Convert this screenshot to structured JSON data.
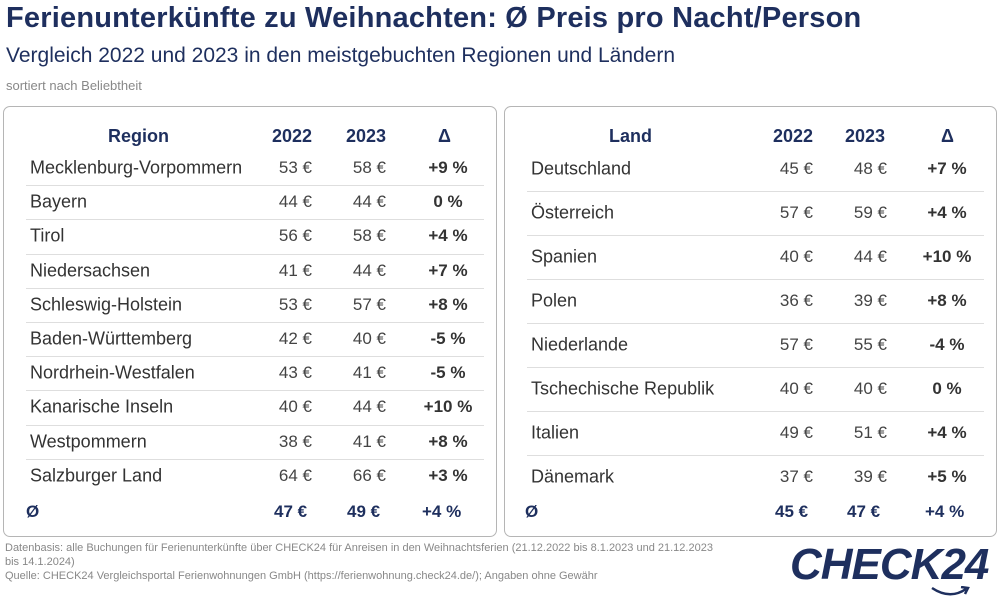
{
  "header": {
    "title": "Ferienunterkünfte zu Weihnachten: Ø Preis pro Nacht/Person",
    "subtitle": "Vergleich 2022 und 2023 in den meistgebuchten Regionen und Ländern",
    "note": "sortiert nach Beliebtheit"
  },
  "chart_data": [
    {
      "type": "table",
      "columns": [
        "Region",
        "2022",
        "2023",
        "Δ"
      ],
      "rows": [
        {
          "label": "Mecklenburg-Vorpommern",
          "v2022": "53 €",
          "v2023": "58 €",
          "delta": "+9 %"
        },
        {
          "label": "Bayern",
          "v2022": "44 €",
          "v2023": "44 €",
          "delta": "0 %"
        },
        {
          "label": "Tirol",
          "v2022": "56 €",
          "v2023": "58 €",
          "delta": "+4 %"
        },
        {
          "label": "Niedersachsen",
          "v2022": "41 €",
          "v2023": "44 €",
          "delta": "+7 %"
        },
        {
          "label": "Schleswig-Holstein",
          "v2022": "53 €",
          "v2023": "57 €",
          "delta": "+8 %"
        },
        {
          "label": "Baden-Württemberg",
          "v2022": "42 €",
          "v2023": "40 €",
          "delta": "-5 %"
        },
        {
          "label": "Nordrhein-Westfalen",
          "v2022": "43 €",
          "v2023": "41 €",
          "delta": "-5 %"
        },
        {
          "label": "Kanarische Inseln",
          "v2022": "40 €",
          "v2023": "44 €",
          "delta": "+10 %"
        },
        {
          "label": "Westpommern",
          "v2022": "38 €",
          "v2023": "41 €",
          "delta": "+8 %"
        },
        {
          "label": "Salzburger Land",
          "v2022": "64 €",
          "v2023": "66 €",
          "delta": "+3 %"
        }
      ],
      "average": {
        "label": "Ø",
        "v2022": "47 €",
        "v2023": "49 €",
        "delta": "+4 %"
      }
    },
    {
      "type": "table",
      "columns": [
        "Land",
        "2022",
        "2023",
        "Δ"
      ],
      "rows": [
        {
          "label": "Deutschland",
          "v2022": "45 €",
          "v2023": "48 €",
          "delta": "+7 %"
        },
        {
          "label": "Österreich",
          "v2022": "57 €",
          "v2023": "59 €",
          "delta": "+4 %"
        },
        {
          "label": "Spanien",
          "v2022": "40 €",
          "v2023": "44 €",
          "delta": "+10 %"
        },
        {
          "label": "Polen",
          "v2022": "36 €",
          "v2023": "39 €",
          "delta": "+8 %"
        },
        {
          "label": "Niederlande",
          "v2022": "57 €",
          "v2023": "55 €",
          "delta": "-4 %"
        },
        {
          "label": "Tschechische Republik",
          "v2022": "40 €",
          "v2023": "40 €",
          "delta": "0 %"
        },
        {
          "label": "Italien",
          "v2022": "49 €",
          "v2023": "51 €",
          "delta": "+4 %"
        },
        {
          "label": "Dänemark",
          "v2022": "37 €",
          "v2023": "39 €",
          "delta": "+5 %"
        }
      ],
      "average": {
        "label": "Ø",
        "v2022": "45 €",
        "v2023": "47 €",
        "delta": "+4 %"
      }
    }
  ],
  "footer": {
    "line1": "Datenbasis: alle Buchungen für Ferienunterkünfte über CHECK24 für Anreisen in den Weihnachtsferien (21.12.2022 bis 8.1.2023 und 21.12.2023",
    "line2": "bis 14.1.2024)",
    "line3": "Quelle: CHECK24 Vergleichsportal Ferienwohnungen GmbH (https://ferienwohnung.check24.de/); Angaben ohne Gewähr"
  },
  "logo": {
    "text": "CHECK24"
  },
  "colors": {
    "title": "#1e2f5e",
    "text": "#333333",
    "border": "#b5b5b5"
  }
}
